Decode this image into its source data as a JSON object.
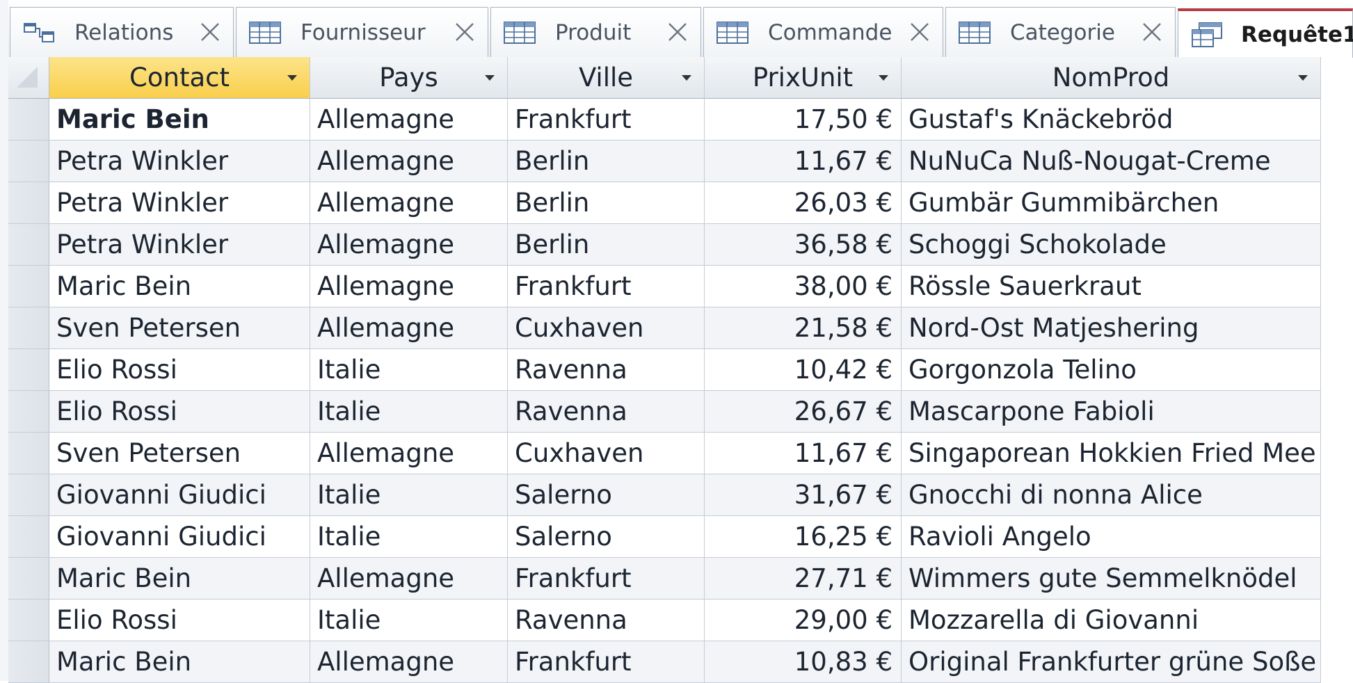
{
  "tabs": [
    {
      "label": "Relations",
      "icon": "relationships-icon",
      "active": false
    },
    {
      "label": "Fournisseur",
      "icon": "table-icon",
      "active": false
    },
    {
      "label": "Produit",
      "icon": "table-icon",
      "active": false
    },
    {
      "label": "Commande",
      "icon": "table-icon",
      "active": false
    },
    {
      "label": "Categorie",
      "icon": "table-icon",
      "active": false
    },
    {
      "label": "Requête1",
      "icon": "query-icon",
      "active": true
    }
  ],
  "columns": [
    "Contact",
    "Pays",
    "Ville",
    "PrixUnit",
    "NomProd"
  ],
  "rows": [
    [
      "Maric Bein",
      "Allemagne",
      "Frankfurt",
      "17,50 €",
      "Gustaf's Knäckebröd"
    ],
    [
      "Petra Winkler",
      "Allemagne",
      "Berlin",
      "11,67 €",
      "NuNuCa Nuß-Nougat-Creme"
    ],
    [
      "Petra Winkler",
      "Allemagne",
      "Berlin",
      "26,03 €",
      "Gumbär Gummibärchen"
    ],
    [
      "Petra Winkler",
      "Allemagne",
      "Berlin",
      "36,58 €",
      "Schoggi Schokolade"
    ],
    [
      "Maric Bein",
      "Allemagne",
      "Frankfurt",
      "38,00 €",
      "Rössle Sauerkraut"
    ],
    [
      "Sven Petersen",
      "Allemagne",
      "Cuxhaven",
      "21,58 €",
      "Nord-Ost Matjeshering"
    ],
    [
      "Elio Rossi",
      "Italie",
      "Ravenna",
      "10,42 €",
      "Gorgonzola Telino"
    ],
    [
      "Elio Rossi",
      "Italie",
      "Ravenna",
      "26,67 €",
      "Mascarpone Fabioli"
    ],
    [
      "Sven Petersen",
      "Allemagne",
      "Cuxhaven",
      "11,67 €",
      "Singaporean Hokkien Fried Mee"
    ],
    [
      "Giovanni Giudici",
      "Italie",
      "Salerno",
      "31,67 €",
      "Gnocchi di nonna Alice"
    ],
    [
      "Giovanni Giudici",
      "Italie",
      "Salerno",
      "16,25 €",
      "Ravioli Angelo"
    ],
    [
      "Maric Bein",
      "Allemagne",
      "Frankfurt",
      "27,71 €",
      "Wimmers gute Semmelknödel"
    ],
    [
      "Elio Rossi",
      "Italie",
      "Ravenna",
      "29,00 €",
      "Mozzarella di Giovanni"
    ],
    [
      "Maric Bein",
      "Allemagne",
      "Frankfurt",
      "10,83 €",
      "Original Frankfurter grüne Soße"
    ]
  ],
  "selected_column": "Contact",
  "colors": {
    "selected_header": "#f9cf4b",
    "active_tab_accent": "#b73a42"
  }
}
